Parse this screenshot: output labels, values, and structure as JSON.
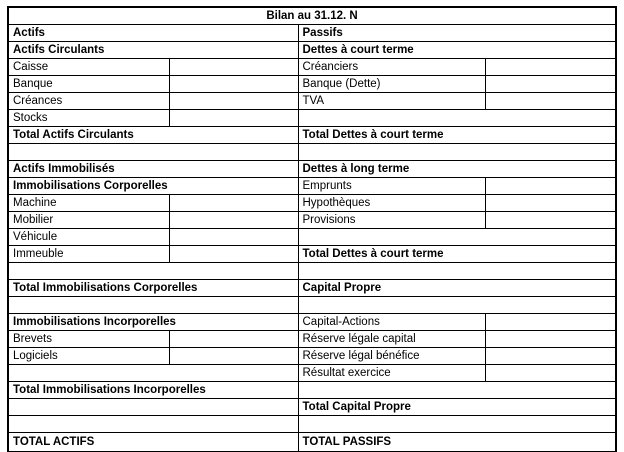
{
  "title": "Bilan au 31.12. N",
  "colors": {
    "border": "#000000",
    "text": "#000000",
    "background": "#ffffff"
  },
  "table": {
    "rows": [
      {
        "left": {
          "text": "Actifs",
          "kind": "section",
          "split": false
        },
        "right": {
          "text": "Passifs",
          "kind": "section",
          "split": false
        }
      },
      {
        "left": {
          "text": "Actifs Circulants",
          "kind": "section",
          "split": false
        },
        "right": {
          "text": "Dettes à court terme",
          "kind": "section",
          "split": false
        }
      },
      {
        "left": {
          "text": "Caisse",
          "kind": "item",
          "split": true
        },
        "right": {
          "text": "Créanciers",
          "kind": "item",
          "split": true
        }
      },
      {
        "left": {
          "text": "Banque",
          "kind": "item",
          "split": true
        },
        "right": {
          "text": "Banque (Dette)",
          "kind": "item",
          "split": true
        }
      },
      {
        "left": {
          "text": "Créances",
          "kind": "item",
          "split": true
        },
        "right": {
          "text": "TVA",
          "kind": "item",
          "split": true
        }
      },
      {
        "left": {
          "text": "Stocks",
          "kind": "item",
          "split": true
        },
        "right": {
          "text": "",
          "kind": "blank",
          "split": false
        }
      },
      {
        "left": {
          "text": "Total Actifs Circulants",
          "kind": "section",
          "split": false
        },
        "right": {
          "text": "Total Dettes à court terme",
          "kind": "section",
          "split": false
        }
      },
      {
        "left": {
          "text": "",
          "kind": "blank",
          "split": false
        },
        "right": {
          "text": "",
          "kind": "blank",
          "split": false
        }
      },
      {
        "left": {
          "text": "Actifs Immobilisés",
          "kind": "section",
          "split": false
        },
        "right": {
          "text": "Dettes à long terme",
          "kind": "section",
          "split": false
        }
      },
      {
        "left": {
          "text": "Immobilisations Corporelles",
          "kind": "section",
          "split": false
        },
        "right": {
          "text": "Emprunts",
          "kind": "item",
          "split": true
        }
      },
      {
        "left": {
          "text": "Machine",
          "kind": "item",
          "split": true
        },
        "right": {
          "text": "Hypothèques",
          "kind": "item",
          "split": true
        }
      },
      {
        "left": {
          "text": "Mobilier",
          "kind": "item",
          "split": true
        },
        "right": {
          "text": "Provisions",
          "kind": "item",
          "split": true
        }
      },
      {
        "left": {
          "text": "Véhicule",
          "kind": "item",
          "split": true
        },
        "right": {
          "text": "",
          "kind": "blank",
          "split": false
        }
      },
      {
        "left": {
          "text": "Immeuble",
          "kind": "item",
          "split": true
        },
        "right": {
          "text": "Total Dettes à court terme",
          "kind": "section",
          "split": false
        }
      },
      {
        "left": {
          "text": "",
          "kind": "blank",
          "split": false
        },
        "right": {
          "text": "",
          "kind": "blank",
          "split": false
        }
      },
      {
        "left": {
          "text": "Total Immobilisations Corporelles",
          "kind": "section",
          "split": false
        },
        "right": {
          "text": "Capital Propre",
          "kind": "section",
          "split": false
        }
      },
      {
        "left": {
          "text": "",
          "kind": "blank",
          "split": false
        },
        "right": {
          "text": "",
          "kind": "blank",
          "split": false
        }
      },
      {
        "left": {
          "text": "Immobilisations Incorporelles",
          "kind": "section",
          "split": false
        },
        "right": {
          "text": "Capital-Actions",
          "kind": "plain",
          "split": true
        }
      },
      {
        "left": {
          "text": "Brevets",
          "kind": "item",
          "split": true
        },
        "right": {
          "text": "Réserve légale capital",
          "kind": "plain",
          "split": true
        }
      },
      {
        "left": {
          "text": "Logiciels",
          "kind": "item",
          "split": true
        },
        "right": {
          "text": "Réserve légal bénéfice",
          "kind": "plain",
          "split": true
        }
      },
      {
        "left": {
          "text": "",
          "kind": "blank",
          "split": false
        },
        "right": {
          "text": "Résultat exercice",
          "kind": "plain",
          "split": true
        }
      },
      {
        "left": {
          "text": "Total Immobilisations Incorporelles",
          "kind": "section",
          "split": false
        },
        "right": {
          "text": "",
          "kind": "blank",
          "split": false
        }
      },
      {
        "left": {
          "text": "",
          "kind": "blank",
          "split": false
        },
        "right": {
          "text": "Total Capital Propre",
          "kind": "section",
          "split": false
        }
      },
      {
        "left": {
          "text": "",
          "kind": "blank",
          "split": false
        },
        "right": {
          "text": "",
          "kind": "blank",
          "split": false
        }
      },
      {
        "left": {
          "text": "TOTAL ACTIFS",
          "kind": "section",
          "split": false
        },
        "right": {
          "text": "TOTAL PASSIFS",
          "kind": "section",
          "split": false
        }
      }
    ]
  }
}
